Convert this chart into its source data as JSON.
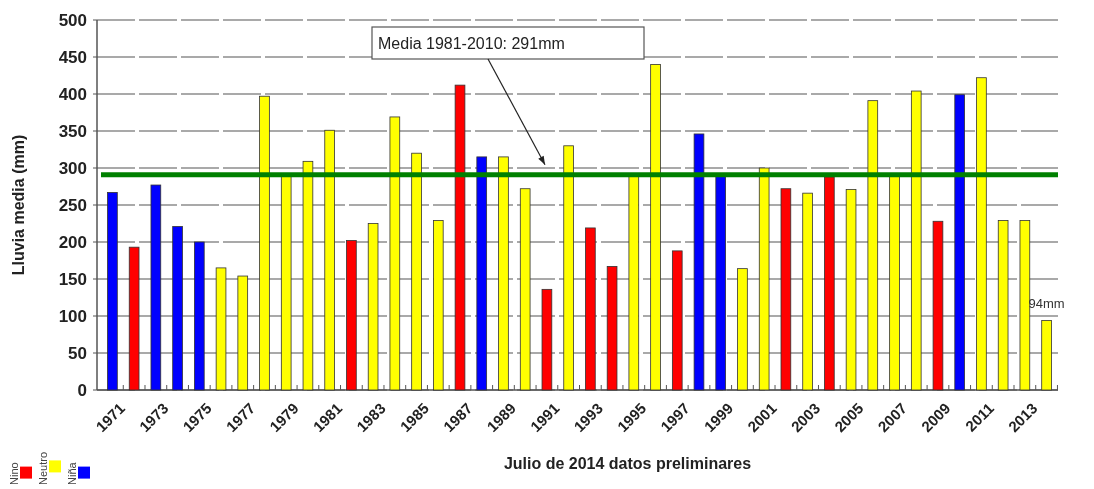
{
  "chart_data": {
    "type": "bar",
    "stacked": true,
    "xlabel": "Julio de 2014 datos preliminares",
    "ylabel": "Lluvia media (mm)",
    "categories": [
      "1971",
      null,
      "1973",
      null,
      "1975",
      null,
      "1977",
      null,
      "1979",
      null,
      "1981",
      null,
      "1983",
      null,
      "1985",
      null,
      "1987",
      null,
      "1989",
      null,
      "1991",
      null,
      "1993",
      null,
      "1995",
      null,
      "1997",
      null,
      "1999",
      null,
      "2001",
      null,
      "2003",
      null,
      "2005",
      null,
      "2007",
      null,
      "2009",
      null,
      "2011",
      null,
      "2013",
      null
    ],
    "series": [
      {
        "name": "Nino",
        "color": "#ff0000",
        "values": [
          null,
          193,
          null,
          null,
          null,
          null,
          null,
          null,
          null,
          null,
          null,
          202,
          null,
          null,
          null,
          null,
          412,
          null,
          null,
          null,
          136,
          null,
          219,
          167,
          null,
          null,
          188,
          null,
          null,
          null,
          null,
          272,
          null,
          288,
          null,
          null,
          null,
          null,
          228,
          null,
          null,
          null,
          null,
          null
        ]
      },
      {
        "name": "Neutro",
        "color": "#ffff00",
        "values": [
          null,
          null,
          null,
          null,
          null,
          165,
          154,
          397,
          290,
          309,
          351,
          null,
          225,
          369,
          320,
          229,
          null,
          null,
          315,
          272,
          null,
          330,
          null,
          null,
          290,
          440,
          null,
          null,
          null,
          164,
          300,
          null,
          266,
          null,
          271,
          391,
          290,
          404,
          null,
          null,
          422,
          229,
          229,
          94
        ],
        "value_labels": [
          null,
          null,
          null,
          null,
          null,
          null,
          null,
          null,
          null,
          null,
          null,
          null,
          null,
          null,
          null,
          null,
          null,
          null,
          null,
          null,
          null,
          null,
          null,
          null,
          null,
          null,
          null,
          null,
          null,
          null,
          null,
          null,
          null,
          null,
          null,
          null,
          null,
          null,
          null,
          null,
          null,
          null,
          null,
          "94mm"
        ]
      },
      {
        "name": "Niña",
        "color": "#0000ff",
        "values": [
          267,
          null,
          277,
          221,
          200,
          null,
          null,
          null,
          null,
          null,
          null,
          null,
          null,
          null,
          null,
          null,
          null,
          315,
          null,
          null,
          null,
          null,
          null,
          null,
          null,
          null,
          null,
          346,
          290,
          null,
          null,
          null,
          null,
          null,
          null,
          null,
          null,
          null,
          null,
          399,
          null,
          null,
          null,
          null
        ]
      }
    ],
    "ylim": [
      0,
      500
    ],
    "yticks": [
      0,
      50,
      100,
      150,
      200,
      250,
      300,
      350,
      400,
      450,
      500
    ],
    "grid": "y",
    "legend": "bottom left",
    "ref_lines": [
      {
        "axis": "y",
        "value": 291,
        "label": "Media 1981-2010: 291mm",
        "color": "#008000"
      }
    ]
  }
}
